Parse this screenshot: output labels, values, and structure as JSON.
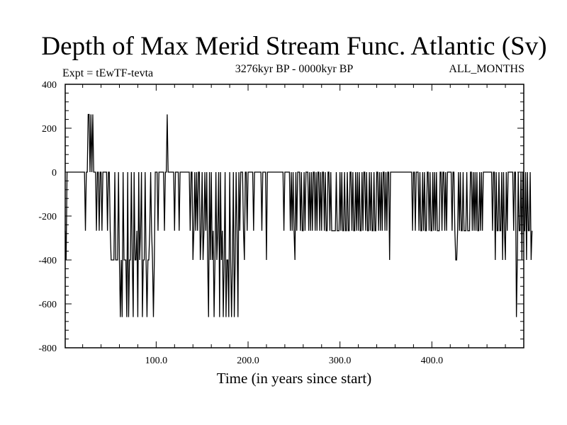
{
  "title": "Depth of Max Merid Stream Func. Atlantic (Sv)",
  "subtitle_left": "Expt = tEwTF-tevta",
  "subtitle_center": "3276kyr BP - 0000kyr BP",
  "subtitle_right": "ALL_MONTHS",
  "colors": {
    "line": "#000000",
    "axes": "#000000",
    "background": "#ffffff"
  },
  "chart_data": {
    "type": "line",
    "title": "Depth of Max Merid Stream Func. Atlantic (Sv)",
    "xlabel": "Time (in years since start)",
    "ylabel": "",
    "xlim": [
      1,
      500
    ],
    "ylim": [
      -800,
      400
    ],
    "xticks": [
      100,
      200,
      300,
      400
    ],
    "xtick_labels": [
      "100.0",
      "200.0",
      "300.0",
      "400.0"
    ],
    "yticks": [
      400,
      200,
      0,
      -200,
      -400,
      -600,
      -800
    ],
    "ytick_labels": [
      "400",
      "200",
      "0",
      "-200",
      "-400",
      "-600",
      "-800"
    ],
    "grid": false,
    "series": [
      {
        "values": [
          -267,
          -400,
          0,
          0,
          0,
          0,
          0,
          0,
          0,
          0,
          0,
          0,
          0,
          0,
          0,
          0,
          0,
          0,
          0,
          0,
          0,
          0,
          -267,
          0,
          0,
          263,
          263,
          0,
          263,
          0,
          263,
          0,
          0,
          0,
          -267,
          0,
          0,
          -267,
          0,
          0,
          -267,
          0,
          0,
          0,
          0,
          0,
          -267,
          0,
          0,
          -267,
          -400,
          -400,
          -400,
          -400,
          0,
          -400,
          -400,
          -400,
          0,
          -400,
          -660,
          -400,
          -660,
          0,
          -400,
          -400,
          -400,
          -660,
          0,
          -660,
          -400,
          -400,
          0,
          -400,
          -660,
          0,
          -400,
          -400,
          -267,
          -660,
          0,
          -400,
          -267,
          0,
          -660,
          -400,
          -400,
          0,
          -400,
          -660,
          -400,
          -400,
          -267,
          0,
          -267,
          -400,
          -660,
          -400,
          0,
          0,
          0,
          -267,
          0,
          0,
          0,
          0,
          0,
          0,
          -267,
          0,
          0,
          263,
          0,
          0,
          0,
          0,
          0,
          0,
          0,
          -267,
          0,
          0,
          0,
          0,
          -267,
          0,
          0,
          0,
          0,
          0,
          0,
          0,
          0,
          0,
          0,
          0,
          -267,
          0,
          0,
          -400,
          -267,
          0,
          -267,
          0,
          -267,
          0,
          0,
          -400,
          -267,
          0,
          -400,
          -267,
          0,
          -267,
          0,
          -400,
          -660,
          0,
          -400,
          0,
          -400,
          -267,
          -660,
          -400,
          0,
          -400,
          -267,
          0,
          -660,
          0,
          -400,
          -267,
          -660,
          -400,
          0,
          -660,
          -400,
          -400,
          -660,
          0,
          -400,
          -660,
          -400,
          0,
          -660,
          -400,
          0,
          -267,
          -660,
          0,
          -267,
          0,
          0,
          0,
          -267,
          -400,
          0,
          0,
          -267,
          0,
          0,
          0,
          0,
          0,
          0,
          -267,
          0,
          0,
          0,
          0,
          0,
          0,
          0,
          0,
          -267,
          0,
          0,
          0,
          0,
          -400,
          0,
          0,
          0,
          0,
          0,
          0,
          0,
          0,
          0,
          0,
          0,
          0,
          0,
          0,
          0,
          0,
          0,
          0,
          -267,
          0,
          0,
          0,
          0,
          0,
          0,
          -267,
          0,
          -267,
          0,
          -267,
          -400,
          0,
          -267,
          0,
          0,
          0,
          -267,
          0,
          -267,
          -267,
          0,
          -267,
          0,
          0,
          0,
          -267,
          0,
          -267,
          0,
          -267,
          0,
          0,
          -267,
          0,
          -267,
          0,
          0,
          -267,
          0,
          -267,
          0,
          0,
          -267,
          0,
          -267,
          -267,
          0,
          0,
          -267,
          0,
          -267,
          -267,
          -267,
          -267,
          -267,
          0,
          -267,
          -267,
          -267,
          0,
          -267,
          0,
          -267,
          -267,
          0,
          -267,
          -267,
          0,
          -267,
          -267,
          0,
          0,
          -267,
          0,
          -267,
          -267,
          0,
          -267,
          0,
          -267,
          0,
          -267,
          -267,
          0,
          -267,
          0,
          0,
          -267,
          0,
          -267,
          -267,
          0,
          -267,
          0,
          -267,
          -267,
          0,
          -267,
          -267,
          0,
          0,
          -267,
          0,
          -267,
          0,
          -267,
          0,
          0,
          -267,
          0,
          -267,
          0,
          0,
          -400,
          0,
          0,
          0,
          0,
          0,
          0,
          0,
          0,
          0,
          0,
          0,
          0,
          0,
          0,
          0,
          0,
          0,
          0,
          0,
          0,
          0,
          0,
          0,
          0,
          -267,
          0,
          0,
          -267,
          0,
          0,
          0,
          -267,
          0,
          -267,
          -267,
          0,
          -267,
          0,
          -267,
          -267,
          0,
          0,
          -267,
          0,
          -267,
          -267,
          0,
          -267,
          0,
          -267,
          0,
          -267,
          -267,
          -267,
          0,
          0,
          -267,
          0,
          0,
          -267,
          0,
          -267,
          0,
          0,
          0,
          0,
          0,
          -267,
          0,
          0,
          -267,
          -400,
          -400,
          -267,
          0,
          -267,
          0,
          -267,
          -267,
          0,
          -267,
          -267,
          -267,
          0,
          -267,
          -267,
          -267,
          0,
          0,
          -267,
          0,
          -267,
          0,
          -267,
          0,
          -267,
          -267,
          0,
          -267,
          0,
          -267,
          0,
          0,
          0,
          0,
          0,
          0,
          0,
          0,
          0,
          0,
          -267,
          0,
          0,
          -400,
          0,
          -267,
          -267,
          0,
          -267,
          -267,
          0,
          -400,
          0,
          -267,
          -400,
          0,
          -267,
          0,
          0,
          0,
          0,
          0,
          0,
          -267,
          0,
          0,
          -660,
          -400,
          0,
          -267,
          -267,
          0,
          -400,
          0,
          -267,
          -267,
          0,
          -400,
          0,
          -267,
          -267,
          0,
          -400,
          -267
        ]
      }
    ]
  }
}
